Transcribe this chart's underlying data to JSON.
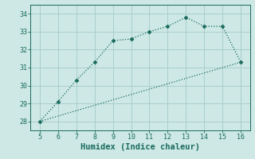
{
  "xlabel": "Humidex (Indice chaleur)",
  "ylabel": "",
  "background_color": "#cde8e5",
  "grid_color": "#aacfcc",
  "line_color": "#1a6b5e",
  "xlim": [
    4.5,
    16.5
  ],
  "ylim": [
    27.5,
    34.5
  ],
  "xticks": [
    5,
    6,
    7,
    8,
    9,
    10,
    11,
    12,
    13,
    14,
    15,
    16
  ],
  "yticks": [
    28,
    29,
    30,
    31,
    32,
    33,
    34
  ],
  "line1_x": [
    5,
    6,
    7,
    8,
    9,
    10,
    11,
    12,
    13,
    14,
    15,
    16
  ],
  "line1_y": [
    28.0,
    29.1,
    30.3,
    31.3,
    32.5,
    32.6,
    33.0,
    33.3,
    33.8,
    33.3,
    33.3,
    31.3
  ],
  "line2_x": [
    5,
    16
  ],
  "line2_y": [
    28.0,
    31.3
  ],
  "marker": "D",
  "marker_size": 2.5,
  "line_width": 0.9,
  "font_color": "#1a6b5e",
  "tick_fontsize": 6,
  "label_fontsize": 7.5
}
